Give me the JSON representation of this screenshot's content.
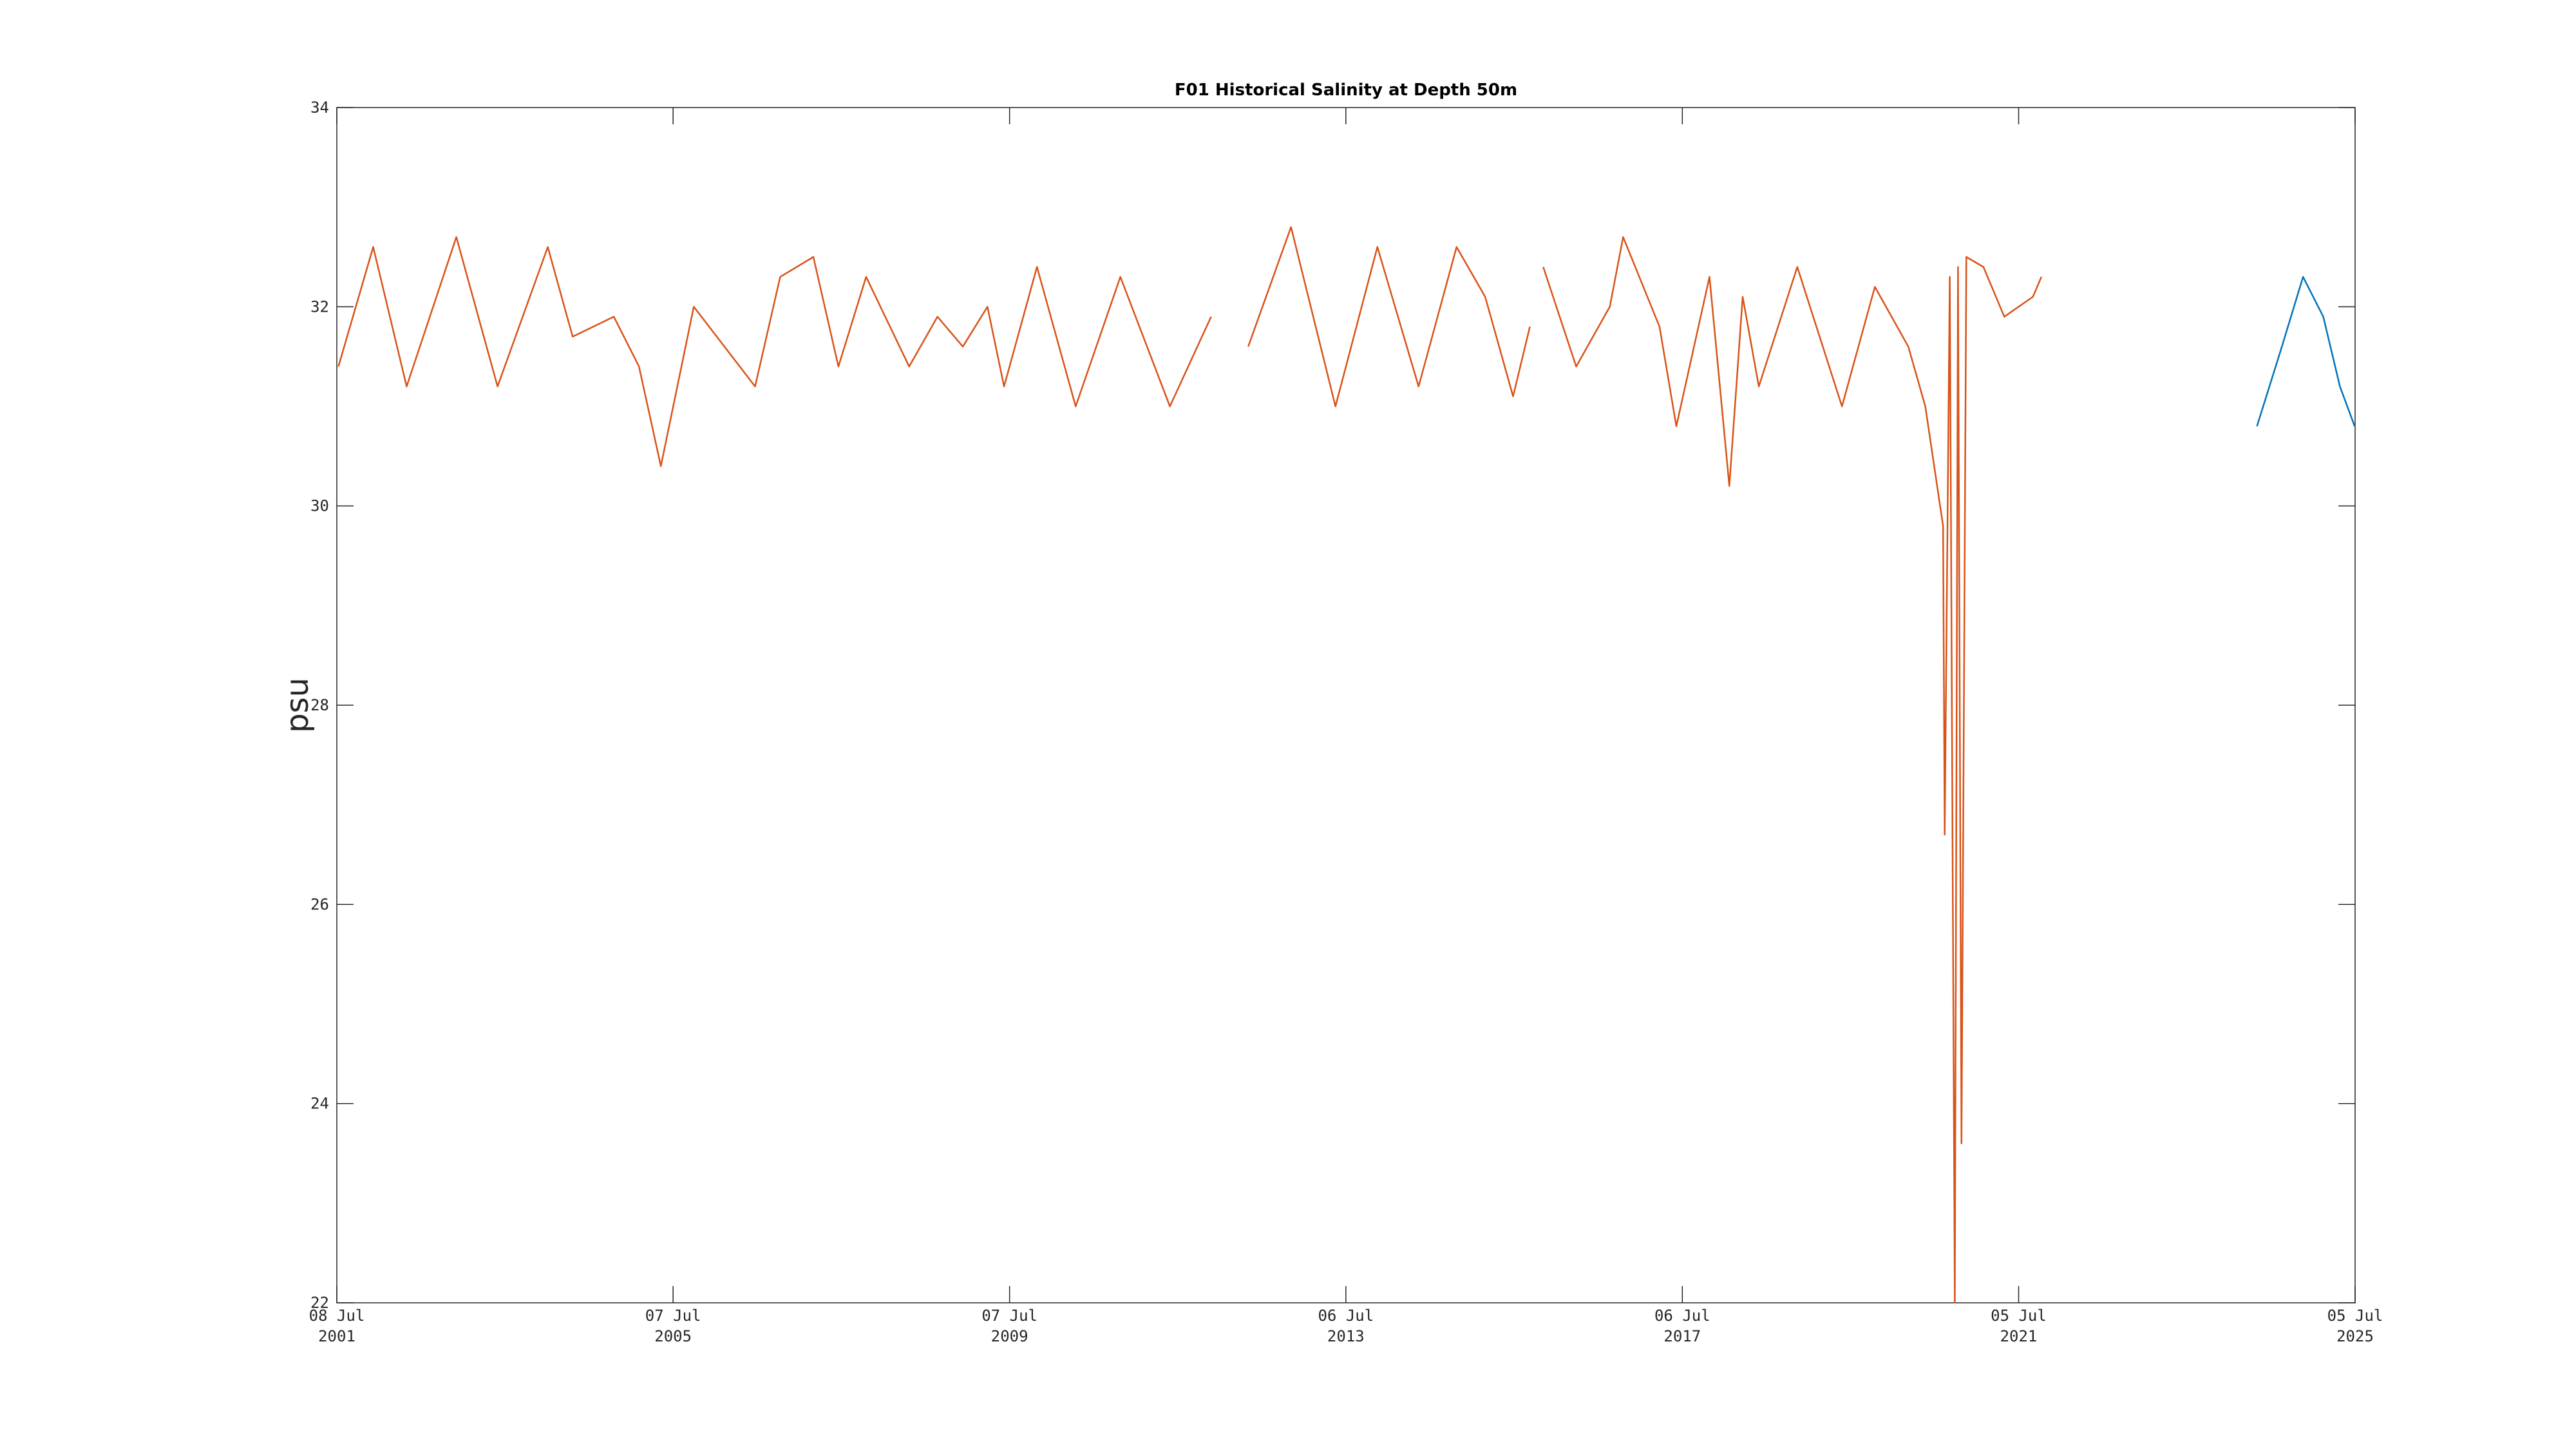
{
  "chart_data": {
    "type": "line",
    "title": "F01 Historical Salinity at Depth 50m",
    "ylabel": "psu",
    "xlim": [
      "2001-07-08",
      "2025-07-05"
    ],
    "xticks": [
      {
        "value": "2001-07-08",
        "label": "08 Jul 2001"
      },
      {
        "value": "2005-07-07",
        "label": "07 Jul 2005"
      },
      {
        "value": "2009-07-07",
        "label": "07 Jul 2009"
      },
      {
        "value": "2013-07-06",
        "label": "06 Jul 2013"
      },
      {
        "value": "2017-07-06",
        "label": "06 Jul 2017"
      },
      {
        "value": "2021-07-05",
        "label": "05 Jul 2021"
      },
      {
        "value": "2025-07-05",
        "label": "05 Jul 2025"
      }
    ],
    "ylim": [
      22,
      34
    ],
    "yticks": [
      22,
      24,
      26,
      28,
      30,
      32,
      34
    ],
    "series": [
      {
        "color": "#d95319",
        "x": [
          "2001-07-15",
          "2001-12-13",
          "2002-05-07",
          "2002-12-09",
          "2003-06-06",
          "2004-01-10",
          "2004-04-27",
          "2004-10-23",
          "2005-02-09",
          "2005-05-15",
          "2005-10-05",
          "2006-06-28",
          "2006-10-15",
          "2007-03-08",
          "2007-06-25",
          "2007-10-23",
          "2008-04-27",
          "2008-08-28",
          "2008-12-16",
          "2009-04-02",
          "2009-06-13",
          "2009-11-03",
          "2010-04-20",
          "2010-10-31",
          "2011-06-03",
          "2011-11-29",
          "2012-01-15",
          "2012-05-08",
          "2012-11-10",
          "2013-05-22",
          "2013-11-20",
          "2014-05-18",
          "2014-10-30",
          "2015-03-03",
          "2015-07-02",
          "2015-09-13",
          "2015-10-20",
          "2015-11-10",
          "2016-04-01",
          "2016-08-25",
          "2016-10-22",
          "2017-03-29",
          "2017-06-10",
          "2017-11-01",
          "2018-01-26",
          "2018-03-25",
          "2018-06-03",
          "2018-11-17",
          "2019-05-30",
          "2019-10-20",
          "2020-03-13",
          "2020-05-26",
          "2020-08-11",
          "2020-08-18",
          "2020-09-09",
          "2020-10-01",
          "2020-10-15",
          "2020-10-30",
          "2020-11-20",
          "2021-02-02",
          "2021-05-04",
          "2021-09-05",
          "2021-10-12"
        ],
        "values": [
          31.4,
          32.6,
          31.2,
          32.7,
          31.2,
          32.6,
          31.7,
          31.9,
          31.4,
          30.4,
          32.0,
          31.2,
          32.3,
          32.5,
          31.4,
          32.3,
          31.4,
          31.9,
          31.6,
          32.0,
          31.2,
          32.4,
          31.0,
          32.3,
          31.0,
          31.9,
          null,
          31.6,
          32.8,
          31.0,
          32.6,
          31.2,
          32.6,
          32.1,
          31.1,
          31.8,
          null,
          32.4,
          31.4,
          32.0,
          32.7,
          31.8,
          30.8,
          32.3,
          30.2,
          32.1,
          31.2,
          32.4,
          31.0,
          32.2,
          31.6,
          31.0,
          29.8,
          26.7,
          32.3,
          22.0,
          32.4,
          23.6,
          32.5,
          32.4,
          31.9,
          32.1,
          32.3
        ]
      },
      {
        "color": "#0072bd",
        "x": [
          "2024-05-05",
          "2024-08-21",
          "2024-11-21",
          "2025-02-17",
          "2025-04-30",
          "2025-07-03"
        ],
        "values": [
          30.8,
          31.6,
          32.3,
          31.9,
          31.2,
          30.8
        ]
      }
    ]
  }
}
